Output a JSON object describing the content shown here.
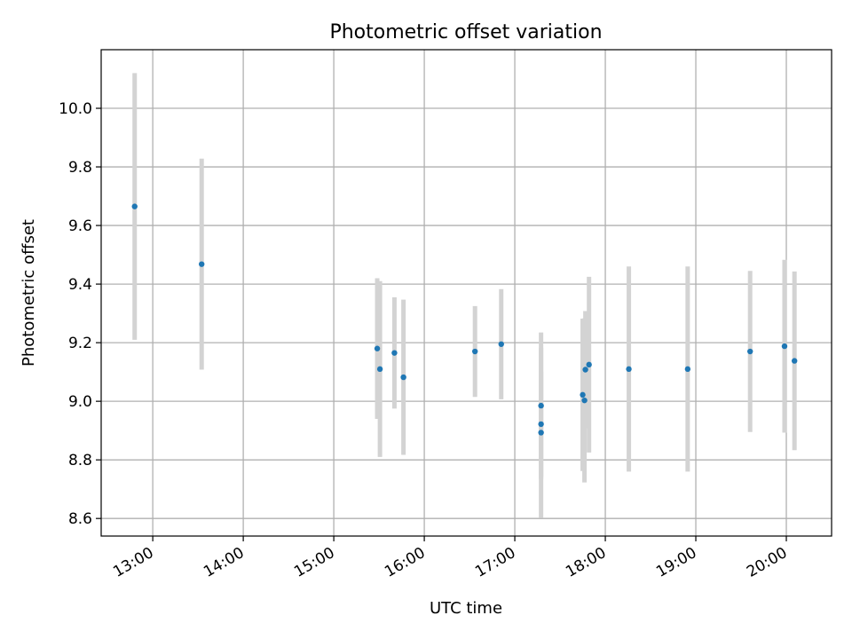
{
  "chart_data": {
    "type": "scatter",
    "title": "Photometric offset variation",
    "xlabel": "UTC time",
    "ylabel": "Photometric offset",
    "x_unit": "hours UTC",
    "xlim": [
      12.43,
      20.5
    ],
    "ylim": [
      8.54,
      10.2
    ],
    "grid": true,
    "marker_color": "#1f77b4",
    "errorbar_color": "#d3d3d3",
    "x_ticks": [
      {
        "value": 13,
        "label": "13:00"
      },
      {
        "value": 14,
        "label": "14:00"
      },
      {
        "value": 15,
        "label": "15:00"
      },
      {
        "value": 16,
        "label": "16:00"
      },
      {
        "value": 17,
        "label": "17:00"
      },
      {
        "value": 18,
        "label": "18:00"
      },
      {
        "value": 19,
        "label": "19:00"
      },
      {
        "value": 20,
        "label": "20:00"
      }
    ],
    "y_ticks": [
      {
        "value": 8.6,
        "label": "8.6"
      },
      {
        "value": 8.8,
        "label": "8.8"
      },
      {
        "value": 9.0,
        "label": "9.0"
      },
      {
        "value": 9.2,
        "label": "9.2"
      },
      {
        "value": 9.4,
        "label": "9.4"
      },
      {
        "value": 9.6,
        "label": "9.6"
      },
      {
        "value": 9.8,
        "label": "9.8"
      },
      {
        "value": 10.0,
        "label": "10.0"
      }
    ],
    "points": [
      {
        "x": 12.8,
        "y": 9.665,
        "err": 0.455
      },
      {
        "x": 13.54,
        "y": 9.468,
        "err": 0.36
      },
      {
        "x": 15.48,
        "y": 9.18,
        "err": 0.24
      },
      {
        "x": 15.51,
        "y": 9.11,
        "err": 0.3
      },
      {
        "x": 15.67,
        "y": 9.165,
        "err": 0.19
      },
      {
        "x": 15.77,
        "y": 9.082,
        "err": 0.265
      },
      {
        "x": 16.56,
        "y": 9.17,
        "err": 0.155
      },
      {
        "x": 16.85,
        "y": 9.195,
        "err": 0.188
      },
      {
        "x": 17.29,
        "y": 8.985,
        "err": 0.25
      },
      {
        "x": 17.29,
        "y": 8.922,
        "err": 0.18
      },
      {
        "x": 17.29,
        "y": 8.893,
        "err": 0.29
      },
      {
        "x": 17.75,
        "y": 9.022,
        "err": 0.26
      },
      {
        "x": 17.77,
        "y": 9.003,
        "err": 0.28
      },
      {
        "x": 17.78,
        "y": 9.108,
        "err": 0.2
      },
      {
        "x": 17.82,
        "y": 9.125,
        "err": 0.3
      },
      {
        "x": 18.26,
        "y": 9.11,
        "err": 0.35
      },
      {
        "x": 18.91,
        "y": 9.11,
        "err": 0.35
      },
      {
        "x": 19.6,
        "y": 9.17,
        "err": 0.275
      },
      {
        "x": 19.98,
        "y": 9.188,
        "err": 0.295
      },
      {
        "x": 20.09,
        "y": 9.138,
        "err": 0.305
      }
    ]
  }
}
